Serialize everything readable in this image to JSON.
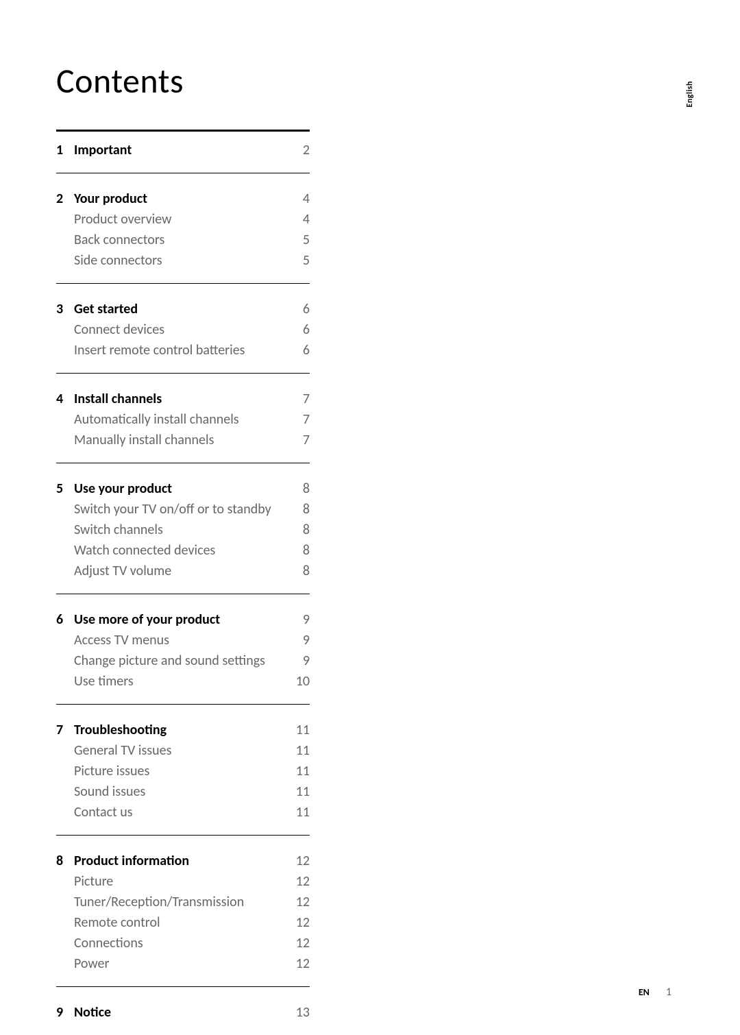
{
  "title": "Contents",
  "side_tab": "English",
  "footer": {
    "lang": "EN",
    "page": "1"
  },
  "sections": [
    {
      "num": "1",
      "heading": {
        "label": "Important",
        "page": "2"
      },
      "subs": []
    },
    {
      "num": "2",
      "heading": {
        "label": "Your product",
        "page": "4"
      },
      "subs": [
        {
          "label": "Product overview",
          "page": "4"
        },
        {
          "label": "Back connectors",
          "page": "5"
        },
        {
          "label": "Side connectors",
          "page": "5"
        }
      ]
    },
    {
      "num": "3",
      "heading": {
        "label": "Get started",
        "page": "6"
      },
      "subs": [
        {
          "label": "Connect devices",
          "page": "6"
        },
        {
          "label": "Insert remote control batteries",
          "page": "6"
        }
      ]
    },
    {
      "num": "4",
      "heading": {
        "label": "Install channels",
        "page": "7"
      },
      "subs": [
        {
          "label": "Automatically install channels",
          "page": "7"
        },
        {
          "label": "Manually install channels",
          "page": "7"
        }
      ]
    },
    {
      "num": "5",
      "heading": {
        "label": "Use your product",
        "page": "8"
      },
      "subs": [
        {
          "label": "Switch your TV on/off or to standby",
          "page": "8"
        },
        {
          "label": "Switch channels",
          "page": "8"
        },
        {
          "label": "Watch connected devices",
          "page": "8"
        },
        {
          "label": "Adjust TV volume",
          "page": "8"
        }
      ]
    },
    {
      "num": "6",
      "heading": {
        "label": "Use more of your product",
        "page": "9"
      },
      "subs": [
        {
          "label": "Access TV menus",
          "page": "9"
        },
        {
          "label": "Change picture and sound settings",
          "page": "9"
        },
        {
          "label": "Use timers",
          "page": "10"
        }
      ]
    },
    {
      "num": "7",
      "heading": {
        "label": "Troubleshooting",
        "page": "11"
      },
      "subs": [
        {
          "label": "General TV issues",
          "page": "11"
        },
        {
          "label": "Picture issues",
          "page": "11"
        },
        {
          "label": "Sound issues",
          "page": "11"
        },
        {
          "label": "Contact us",
          "page": "11"
        }
      ]
    },
    {
      "num": "8",
      "heading": {
        "label": "Product information",
        "page": "12"
      },
      "subs": [
        {
          "label": "Picture",
          "page": "12"
        },
        {
          "label": "Tuner/Reception/Transmission",
          "page": "12"
        },
        {
          "label": "Remote control",
          "page": "12"
        },
        {
          "label": "Connections",
          "page": "12"
        },
        {
          "label": "Power",
          "page": "12"
        }
      ]
    },
    {
      "num": "9",
      "heading": {
        "label": "Notice",
        "page": "13"
      },
      "subs": []
    }
  ]
}
